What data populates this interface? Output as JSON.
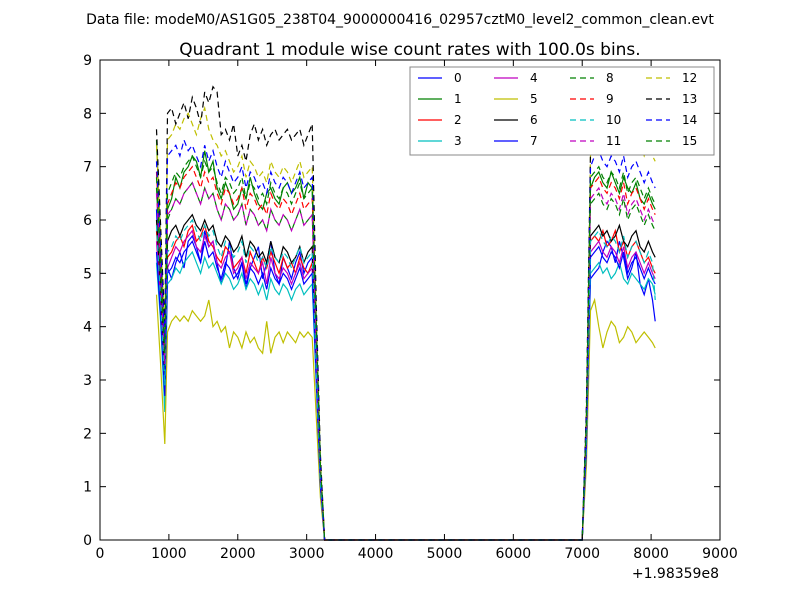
{
  "suptitle": "Data file: modeM0/AS1G05_238T04_9000000416_02957cztM0_level2_common_clean.evt",
  "chart_data": {
    "type": "line",
    "title": "Quadrant 1 module wise count rates with 100.0s bins.",
    "xlabel": "",
    "ylabel": "",
    "xlim": [
      0,
      9000
    ],
    "ylim": [
      0,
      9
    ],
    "x_offset_label": "+1.98359e8",
    "xticks": [
      "0",
      "1000",
      "2000",
      "3000",
      "4000",
      "5000",
      "6000",
      "7000",
      "8000",
      "9000"
    ],
    "yticks": [
      "0",
      "1",
      "2",
      "3",
      "4",
      "5",
      "6",
      "7",
      "8",
      "9"
    ],
    "grid": false,
    "legend_position": "top-right",
    "x": [
      820,
      880,
      940,
      980,
      1040,
      1100,
      1160,
      1220,
      1280,
      1340,
      1400,
      1460,
      1520,
      1580,
      1640,
      1700,
      1760,
      1820,
      1880,
      1940,
      2000,
      2060,
      2120,
      2180,
      2240,
      2300,
      2360,
      2420,
      2480,
      2540,
      2600,
      2660,
      2720,
      2780,
      2840,
      2900,
      2960,
      3020,
      3080,
      3140,
      3200,
      3260,
      7000,
      7060,
      7120,
      7180,
      7240,
      7300,
      7360,
      7420,
      7480,
      7540,
      7600,
      7660,
      7720,
      7780,
      7840,
      7900,
      7960,
      8020,
      8060
    ],
    "series": [
      {
        "name": "0",
        "color": "#0000ff",
        "dash": "solid",
        "values": [
          6.2,
          4.3,
          3.2,
          5.1,
          4.9,
          5.2,
          5.4,
          5.1,
          5.6,
          5.7,
          5.5,
          5.2,
          5.8,
          5.5,
          5.6,
          5.2,
          4.8,
          5.1,
          5.6,
          5.1,
          4.9,
          5.2,
          4.7,
          5.1,
          5.3,
          5.5,
          4.9,
          5.2,
          5.6,
          5.0,
          4.8,
          5.3,
          5.1,
          4.9,
          5.2,
          5.4,
          5.0,
          5.2,
          5.3,
          3.2,
          1.2,
          0.0,
          0.0,
          1.8,
          4.9,
          5.0,
          5.1,
          5.4,
          5.6,
          5.5,
          5.2,
          5.6,
          5.3,
          4.9,
          5.1,
          5.4,
          4.8,
          4.6,
          4.9,
          4.5,
          4.1
        ]
      },
      {
        "name": "1",
        "color": "#008000",
        "dash": "solid",
        "values": [
          7.5,
          5.6,
          3.8,
          6.2,
          6.4,
          6.8,
          6.6,
          6.9,
          7.0,
          7.2,
          7.1,
          6.8,
          7.3,
          6.9,
          7.1,
          6.6,
          6.4,
          6.7,
          6.5,
          6.2,
          6.3,
          6.6,
          6.4,
          6.8,
          6.5,
          6.3,
          6.2,
          6.5,
          6.6,
          6.4,
          6.3,
          6.6,
          6.7,
          6.5,
          6.6,
          6.8,
          6.4,
          6.7,
          6.6,
          4.0,
          1.4,
          0.0,
          0.0,
          2.3,
          6.6,
          6.8,
          6.9,
          6.7,
          6.6,
          6.9,
          6.7,
          6.5,
          6.8,
          6.6,
          6.5,
          6.7,
          6.4,
          6.3,
          6.5,
          6.3,
          6.2
        ]
      },
      {
        "name": "2",
        "color": "#ff0000",
        "dash": "solid",
        "values": [
          5.8,
          4.6,
          2.8,
          5.3,
          5.4,
          5.6,
          5.7,
          5.5,
          5.8,
          5.9,
          5.6,
          5.7,
          5.9,
          5.6,
          5.5,
          5.3,
          5.2,
          5.5,
          5.4,
          5.1,
          5.2,
          5.3,
          5.0,
          5.4,
          5.2,
          5.0,
          5.3,
          5.1,
          5.4,
          5.2,
          5.0,
          5.3,
          5.1,
          5.2,
          5.0,
          5.3,
          5.1,
          5.0,
          5.2,
          3.1,
          1.1,
          0.0,
          0.0,
          1.9,
          5.6,
          5.7,
          5.6,
          5.8,
          5.5,
          5.6,
          5.8,
          5.4,
          5.6,
          5.3,
          5.5,
          5.6,
          5.4,
          5.2,
          5.3,
          5.1,
          5.0
        ]
      },
      {
        "name": "3",
        "color": "#00bfbf",
        "dash": "solid",
        "values": [
          5.2,
          4.1,
          2.4,
          4.8,
          4.9,
          5.1,
          5.0,
          5.2,
          5.3,
          5.4,
          5.2,
          5.0,
          5.3,
          5.1,
          5.2,
          5.0,
          4.8,
          5.0,
          4.9,
          4.7,
          4.8,
          5.0,
          4.7,
          4.9,
          4.8,
          4.6,
          4.8,
          4.5,
          4.9,
          4.7,
          4.6,
          4.8,
          4.7,
          4.5,
          4.7,
          4.8,
          4.6,
          4.7,
          4.8,
          2.9,
          1.0,
          0.0,
          0.0,
          1.7,
          5.0,
          5.1,
          5.2,
          5.0,
          5.1,
          4.9,
          5.0,
          5.2,
          4.9,
          4.8,
          5.0,
          4.9,
          4.8,
          4.7,
          4.9,
          4.8,
          4.6
        ]
      },
      {
        "name": "4",
        "color": "#bf00bf",
        "dash": "solid",
        "values": [
          5.6,
          4.4,
          2.9,
          5.1,
          5.3,
          5.5,
          5.4,
          5.6,
          5.7,
          5.8,
          5.5,
          5.4,
          5.7,
          5.5,
          5.6,
          5.2,
          5.1,
          5.3,
          5.4,
          5.0,
          5.1,
          5.3,
          4.9,
          5.2,
          5.1,
          5.0,
          5.2,
          4.8,
          5.3,
          5.0,
          4.9,
          5.1,
          5.0,
          4.8,
          5.0,
          5.2,
          4.9,
          5.0,
          5.1,
          3.0,
          1.1,
          0.0,
          0.0,
          1.8,
          5.4,
          5.5,
          5.6,
          5.4,
          5.3,
          5.5,
          5.4,
          5.2,
          5.5,
          5.1,
          5.3,
          5.4,
          5.2,
          5.0,
          5.2,
          5.0,
          4.9
        ]
      },
      {
        "name": "5",
        "color": "#bfbf00",
        "dash": "solid",
        "values": [
          4.6,
          3.3,
          1.8,
          3.9,
          4.1,
          4.2,
          4.1,
          4.2,
          4.1,
          4.3,
          4.2,
          4.1,
          4.2,
          4.5,
          4.0,
          4.1,
          3.9,
          4.0,
          3.6,
          3.9,
          3.8,
          3.6,
          3.9,
          3.7,
          3.8,
          3.6,
          3.5,
          4.1,
          3.5,
          3.8,
          3.9,
          3.7,
          3.9,
          3.8,
          3.7,
          3.9,
          3.8,
          3.9,
          3.8,
          2.3,
          0.8,
          0.0,
          0.0,
          1.4,
          4.3,
          4.5,
          4.0,
          3.6,
          3.9,
          4.1,
          4.0,
          3.7,
          3.8,
          4.0,
          3.9,
          3.7,
          3.8,
          3.9,
          3.8,
          3.7,
          3.6
        ]
      },
      {
        "name": "6",
        "color": "#000000",
        "dash": "solid",
        "values": [
          6.0,
          4.8,
          3.1,
          5.6,
          5.8,
          5.9,
          5.7,
          5.9,
          6.0,
          6.1,
          5.9,
          5.8,
          6.0,
          5.8,
          5.9,
          5.6,
          5.5,
          5.7,
          5.6,
          5.4,
          5.5,
          5.7,
          5.3,
          5.6,
          5.5,
          5.3,
          5.4,
          5.2,
          5.6,
          5.3,
          5.2,
          5.5,
          5.4,
          5.2,
          5.3,
          5.5,
          5.2,
          5.4,
          5.5,
          3.3,
          1.2,
          0.0,
          0.0,
          2.0,
          5.7,
          5.8,
          5.9,
          5.7,
          5.8,
          5.6,
          5.7,
          5.9,
          5.6,
          5.5,
          5.7,
          5.8,
          5.5,
          5.4,
          5.6,
          5.4,
          5.3
        ]
      },
      {
        "name": "7",
        "color": "#0000ff",
        "dash": "solid",
        "values": [
          5.4,
          4.2,
          2.7,
          5.0,
          5.1,
          5.3,
          5.2,
          5.4,
          5.5,
          5.6,
          5.4,
          5.2,
          5.6,
          5.3,
          5.4,
          5.1,
          4.9,
          5.2,
          5.1,
          4.9,
          5.0,
          5.2,
          4.8,
          5.1,
          5.0,
          4.8,
          5.0,
          4.7,
          5.1,
          4.9,
          4.8,
          5.0,
          4.9,
          4.7,
          4.9,
          5.1,
          4.8,
          4.9,
          5.0,
          3.0,
          1.0,
          0.0,
          0.0,
          1.7,
          5.3,
          5.4,
          5.5,
          5.3,
          5.2,
          5.4,
          5.3,
          5.1,
          5.4,
          5.0,
          5.2,
          5.3,
          5.1,
          4.9,
          5.1,
          4.9,
          4.8
        ]
      },
      {
        "name": "8",
        "color": "#008000",
        "dash": "dashed",
        "values": [
          6.6,
          5.1,
          3.4,
          6.0,
          6.2,
          6.4,
          6.3,
          6.5,
          6.6,
          6.7,
          6.5,
          6.3,
          6.6,
          6.4,
          6.5,
          6.2,
          6.0,
          6.3,
          6.2,
          6.0,
          6.1,
          6.3,
          5.9,
          6.2,
          6.1,
          5.9,
          6.0,
          5.8,
          6.2,
          6.0,
          5.9,
          6.1,
          6.0,
          5.8,
          6.0,
          6.2,
          5.9,
          6.0,
          6.1,
          3.7,
          1.3,
          0.0,
          0.0,
          2.1,
          6.3,
          6.4,
          6.5,
          6.3,
          6.2,
          6.4,
          6.3,
          6.1,
          6.4,
          6.0,
          6.2,
          6.3,
          6.1,
          5.9,
          6.1,
          5.9,
          5.8
        ]
      },
      {
        "name": "9",
        "color": "#ff0000",
        "dash": "dashed",
        "values": [
          6.9,
          5.3,
          3.5,
          6.3,
          6.5,
          6.7,
          6.6,
          6.8,
          6.9,
          7.0,
          6.8,
          6.6,
          6.9,
          6.7,
          6.8,
          6.5,
          6.3,
          6.6,
          6.5,
          6.3,
          6.4,
          6.6,
          6.2,
          6.5,
          6.4,
          6.2,
          6.3,
          6.1,
          6.5,
          6.3,
          6.2,
          6.4,
          6.3,
          6.1,
          6.3,
          6.5,
          6.2,
          6.3,
          6.4,
          3.9,
          1.4,
          0.0,
          0.0,
          2.2,
          6.6,
          6.7,
          6.8,
          6.6,
          6.5,
          6.7,
          6.6,
          6.4,
          6.7,
          6.3,
          6.5,
          6.6,
          6.4,
          6.2,
          6.4,
          6.2,
          6.1
        ]
      },
      {
        "name": "10",
        "color": "#00bfbf",
        "dash": "dashed",
        "values": [
          5.9,
          4.5,
          2.9,
          5.4,
          5.5,
          5.7,
          5.6,
          5.8,
          5.9,
          6.0,
          5.8,
          5.6,
          5.9,
          5.7,
          5.8,
          5.5,
          5.3,
          5.6,
          5.5,
          5.3,
          5.4,
          5.6,
          5.2,
          5.5,
          5.4,
          5.2,
          5.3,
          5.1,
          5.5,
          5.3,
          5.2,
          5.4,
          5.3,
          5.1,
          5.3,
          5.5,
          5.2,
          5.3,
          5.4,
          3.2,
          1.1,
          0.0,
          0.0,
          1.9,
          5.6,
          5.7,
          5.8,
          5.6,
          5.5,
          5.7,
          5.6,
          5.4,
          5.7,
          5.3,
          5.5,
          5.6,
          5.4,
          5.2,
          5.4,
          5.2,
          4.5
        ]
      },
      {
        "name": "11",
        "color": "#bf00bf",
        "dash": "dashed",
        "values": [
          6.5,
          5.0,
          3.3,
          6.1,
          6.2,
          6.4,
          6.3,
          6.5,
          6.6,
          6.7,
          6.5,
          6.3,
          6.6,
          6.4,
          6.5,
          6.2,
          6.0,
          6.3,
          6.2,
          6.0,
          6.1,
          6.3,
          5.9,
          6.2,
          6.1,
          5.9,
          6.0,
          5.8,
          6.2,
          6.0,
          5.9,
          6.1,
          6.0,
          5.8,
          6.0,
          6.2,
          5.9,
          6.0,
          6.1,
          3.6,
          1.3,
          0.0,
          0.0,
          2.1,
          6.4,
          6.5,
          6.6,
          6.4,
          6.3,
          6.5,
          6.4,
          6.2,
          6.5,
          6.1,
          6.3,
          6.4,
          6.2,
          6.0,
          6.2,
          6.0,
          5.9
        ]
      },
      {
        "name": "12",
        "color": "#bfbf00",
        "dash": "dashed",
        "values": [
          7.4,
          5.7,
          3.9,
          7.5,
          7.6,
          7.8,
          7.7,
          7.9,
          8.0,
          7.8,
          7.6,
          7.9,
          8.1,
          7.7,
          7.5,
          7.4,
          7.2,
          7.3,
          7.1,
          6.9,
          7.0,
          7.2,
          6.8,
          7.1,
          7.0,
          6.8,
          6.9,
          6.7,
          7.1,
          6.9,
          6.8,
          7.0,
          6.9,
          6.7,
          6.9,
          7.1,
          6.8,
          6.9,
          7.0,
          4.2,
          1.5,
          0.0,
          0.0,
          2.4,
          7.2,
          7.6,
          8.1,
          7.8,
          7.5,
          7.3,
          7.6,
          7.4,
          7.7,
          7.3,
          7.5,
          7.6,
          7.4,
          7.2,
          7.4,
          7.2,
          7.1
        ]
      },
      {
        "name": "13",
        "color": "#000000",
        "dash": "dashed",
        "values": [
          7.7,
          5.9,
          4.0,
          8.0,
          8.1,
          7.8,
          8.0,
          8.2,
          7.9,
          8.3,
          8.1,
          7.8,
          8.4,
          8.2,
          8.5,
          8.4,
          7.6,
          7.7,
          7.5,
          7.8,
          7.2,
          7.4,
          7.1,
          7.6,
          7.8,
          7.5,
          7.7,
          7.4,
          7.6,
          7.7,
          7.5,
          7.6,
          7.7,
          7.5,
          7.6,
          7.7,
          7.4,
          7.6,
          7.8,
          4.4,
          1.6,
          0.0,
          0.0,
          2.5,
          7.3,
          7.5,
          7.7,
          7.6,
          7.8,
          7.5,
          7.6,
          7.4,
          7.7,
          7.5,
          7.6,
          7.7,
          7.5,
          7.6,
          7.8,
          7.6,
          7.5
        ]
      },
      {
        "name": "14",
        "color": "#0000ff",
        "dash": "dashed",
        "values": [
          7.1,
          5.5,
          3.7,
          7.2,
          7.3,
          7.4,
          7.2,
          7.5,
          7.3,
          7.4,
          7.2,
          7.0,
          7.4,
          7.1,
          7.3,
          7.0,
          6.8,
          7.1,
          6.9,
          6.7,
          6.8,
          7.0,
          6.6,
          6.9,
          6.8,
          6.6,
          6.7,
          6.5,
          6.9,
          6.7,
          6.6,
          6.8,
          6.7,
          6.5,
          6.7,
          6.9,
          6.6,
          6.7,
          6.8,
          4.1,
          1.4,
          0.0,
          0.0,
          2.3,
          7.0,
          7.2,
          7.3,
          7.1,
          7.0,
          7.2,
          7.1,
          6.9,
          7.2,
          6.8,
          7.0,
          7.1,
          6.9,
          6.7,
          6.9,
          6.7,
          6.6
        ]
      },
      {
        "name": "15",
        "color": "#008000",
        "dash": "dashed",
        "values": [
          6.8,
          5.2,
          3.5,
          6.5,
          6.7,
          6.9,
          6.8,
          7.0,
          7.1,
          7.2,
          7.0,
          6.8,
          7.1,
          6.9,
          7.0,
          6.7,
          6.5,
          6.8,
          6.7,
          6.5,
          6.6,
          6.8,
          6.4,
          6.7,
          6.6,
          6.4,
          6.5,
          6.3,
          6.7,
          6.5,
          6.4,
          6.6,
          6.5,
          6.3,
          6.5,
          6.7,
          6.4,
          6.5,
          6.6,
          4.0,
          1.4,
          0.0,
          0.0,
          2.2,
          6.8,
          6.9,
          7.0,
          6.8,
          6.7,
          6.9,
          6.8,
          6.6,
          6.9,
          6.5,
          6.7,
          6.8,
          6.6,
          6.4,
          6.6,
          6.4,
          6.3
        ]
      }
    ]
  }
}
